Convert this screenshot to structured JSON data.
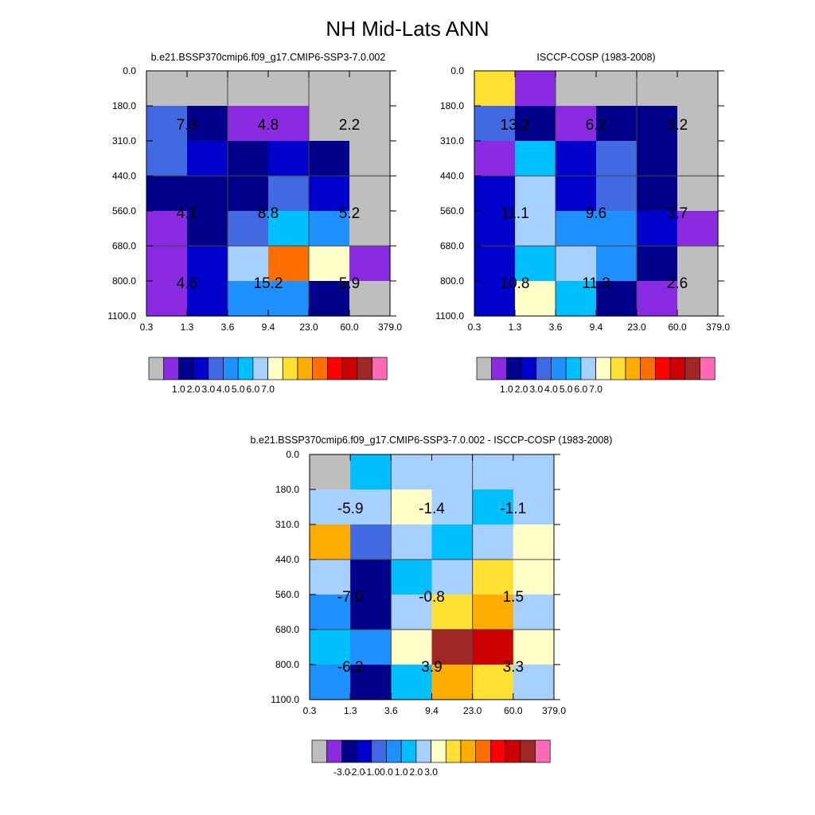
{
  "title": "NH Mid-Lats ANN",
  "palette": {
    "missing": "#bebebe",
    "levels": [
      "#8a2be2",
      "#00008b",
      "#0000cd",
      "#4169e1",
      "#1e90ff",
      "#00bfff",
      "#a6d0ff",
      "#ffffc8",
      "#ffe033",
      "#ffad00",
      "#ff6f00",
      "#ff0000",
      "#cc0000",
      "#a12626",
      "#ff69b4"
    ]
  },
  "chart_data": [
    {
      "type": "heatmap",
      "title": "b.e21.BSSP370cmip6.f09_g17.CMIP6-SSP3-7.0.002",
      "x_ticks": [
        "0.3",
        "1.3",
        "3.6",
        "9.4",
        "23.0",
        "60.0",
        "379.0"
      ],
      "y_ticks": [
        "0.0",
        "180.0",
        "310.0",
        "440.0",
        "560.0",
        "680.0",
        "800.0",
        "1100.0"
      ],
      "cell_color_index": [
        [
          -1,
          -1,
          -1,
          -1,
          -1,
          -1
        ],
        [
          3,
          1,
          0,
          0,
          -1,
          -1
        ],
        [
          3,
          2,
          1,
          2,
          1,
          -1
        ],
        [
          1,
          1,
          1,
          3,
          2,
          -1
        ],
        [
          0,
          1,
          3,
          5,
          4,
          -1
        ],
        [
          0,
          2,
          6,
          10,
          7,
          0
        ],
        [
          0,
          2,
          4,
          4,
          1,
          -1
        ]
      ],
      "box_totals": [
        [
          "7.3",
          "4.8",
          "2.2"
        ],
        [
          "4.1",
          "8.8",
          "5.2"
        ],
        [
          "4.6",
          "15.2",
          "5.9"
        ]
      ],
      "colorbar_labels": [
        "1.0",
        "2.0",
        "3.0",
        "4.0",
        "5.0",
        "6.0",
        "7.0"
      ]
    },
    {
      "type": "heatmap",
      "title": "ISCCP-COSP (1983-2008)",
      "x_ticks": [
        "0.3",
        "1.3",
        "3.6",
        "9.4",
        "23.0",
        "60.0",
        "379.0"
      ],
      "y_ticks": [
        "0.0",
        "180.0",
        "310.0",
        "440.0",
        "560.0",
        "680.0",
        "800.0",
        "1100.0"
      ],
      "cell_color_index": [
        [
          8,
          0,
          -1,
          -1,
          -1,
          -1
        ],
        [
          3,
          1,
          0,
          1,
          1,
          -1
        ],
        [
          0,
          5,
          2,
          3,
          1,
          -1
        ],
        [
          2,
          6,
          2,
          3,
          1,
          -1
        ],
        [
          2,
          6,
          4,
          4,
          2,
          0
        ],
        [
          2,
          5,
          6,
          4,
          1,
          -1
        ],
        [
          2,
          7,
          5,
          1,
          0,
          -1
        ]
      ],
      "box_totals": [
        [
          "13.2",
          "6.2",
          "3.2"
        ],
        [
          "11.1",
          "9.6",
          "3.7"
        ],
        [
          "10.8",
          "11.3",
          "2.6"
        ]
      ],
      "colorbar_labels": [
        "1.0",
        "2.0",
        "3.0",
        "4.0",
        "5.0",
        "6.0",
        "7.0"
      ]
    },
    {
      "type": "heatmap",
      "title": "b.e21.BSSP370cmip6.f09_g17.CMIP6-SSP3-7.0.002 - ISCCP-COSP (1983-2008)",
      "x_ticks": [
        "0.3",
        "1.3",
        "3.6",
        "9.4",
        "23.0",
        "60.0",
        "379.0"
      ],
      "y_ticks": [
        "0.0",
        "180.0",
        "310.0",
        "440.0",
        "560.0",
        "680.0",
        "800.0",
        "1100.0"
      ],
      "cell_color_index": [
        [
          -1,
          5,
          6,
          6,
          6,
          6
        ],
        [
          6,
          6,
          7,
          6,
          5,
          6
        ],
        [
          9,
          3,
          6,
          5,
          6,
          7
        ],
        [
          6,
          1,
          5,
          6,
          8,
          7
        ],
        [
          4,
          1,
          6,
          8,
          9,
          6
        ],
        [
          5,
          4,
          7,
          13,
          12,
          7
        ],
        [
          4,
          1,
          5,
          9,
          8,
          6
        ]
      ],
      "box_totals": [
        [
          "-5.9",
          "-1.4",
          "-1.1"
        ],
        [
          "-7.0",
          "-0.8",
          "1.5"
        ],
        [
          "-6.2",
          "3.9",
          "3.3"
        ]
      ],
      "colorbar_labels": [
        "-3.0",
        "-2.0",
        "-1.0",
        "0.0",
        "1.0",
        "2.0",
        "3.0"
      ]
    }
  ]
}
